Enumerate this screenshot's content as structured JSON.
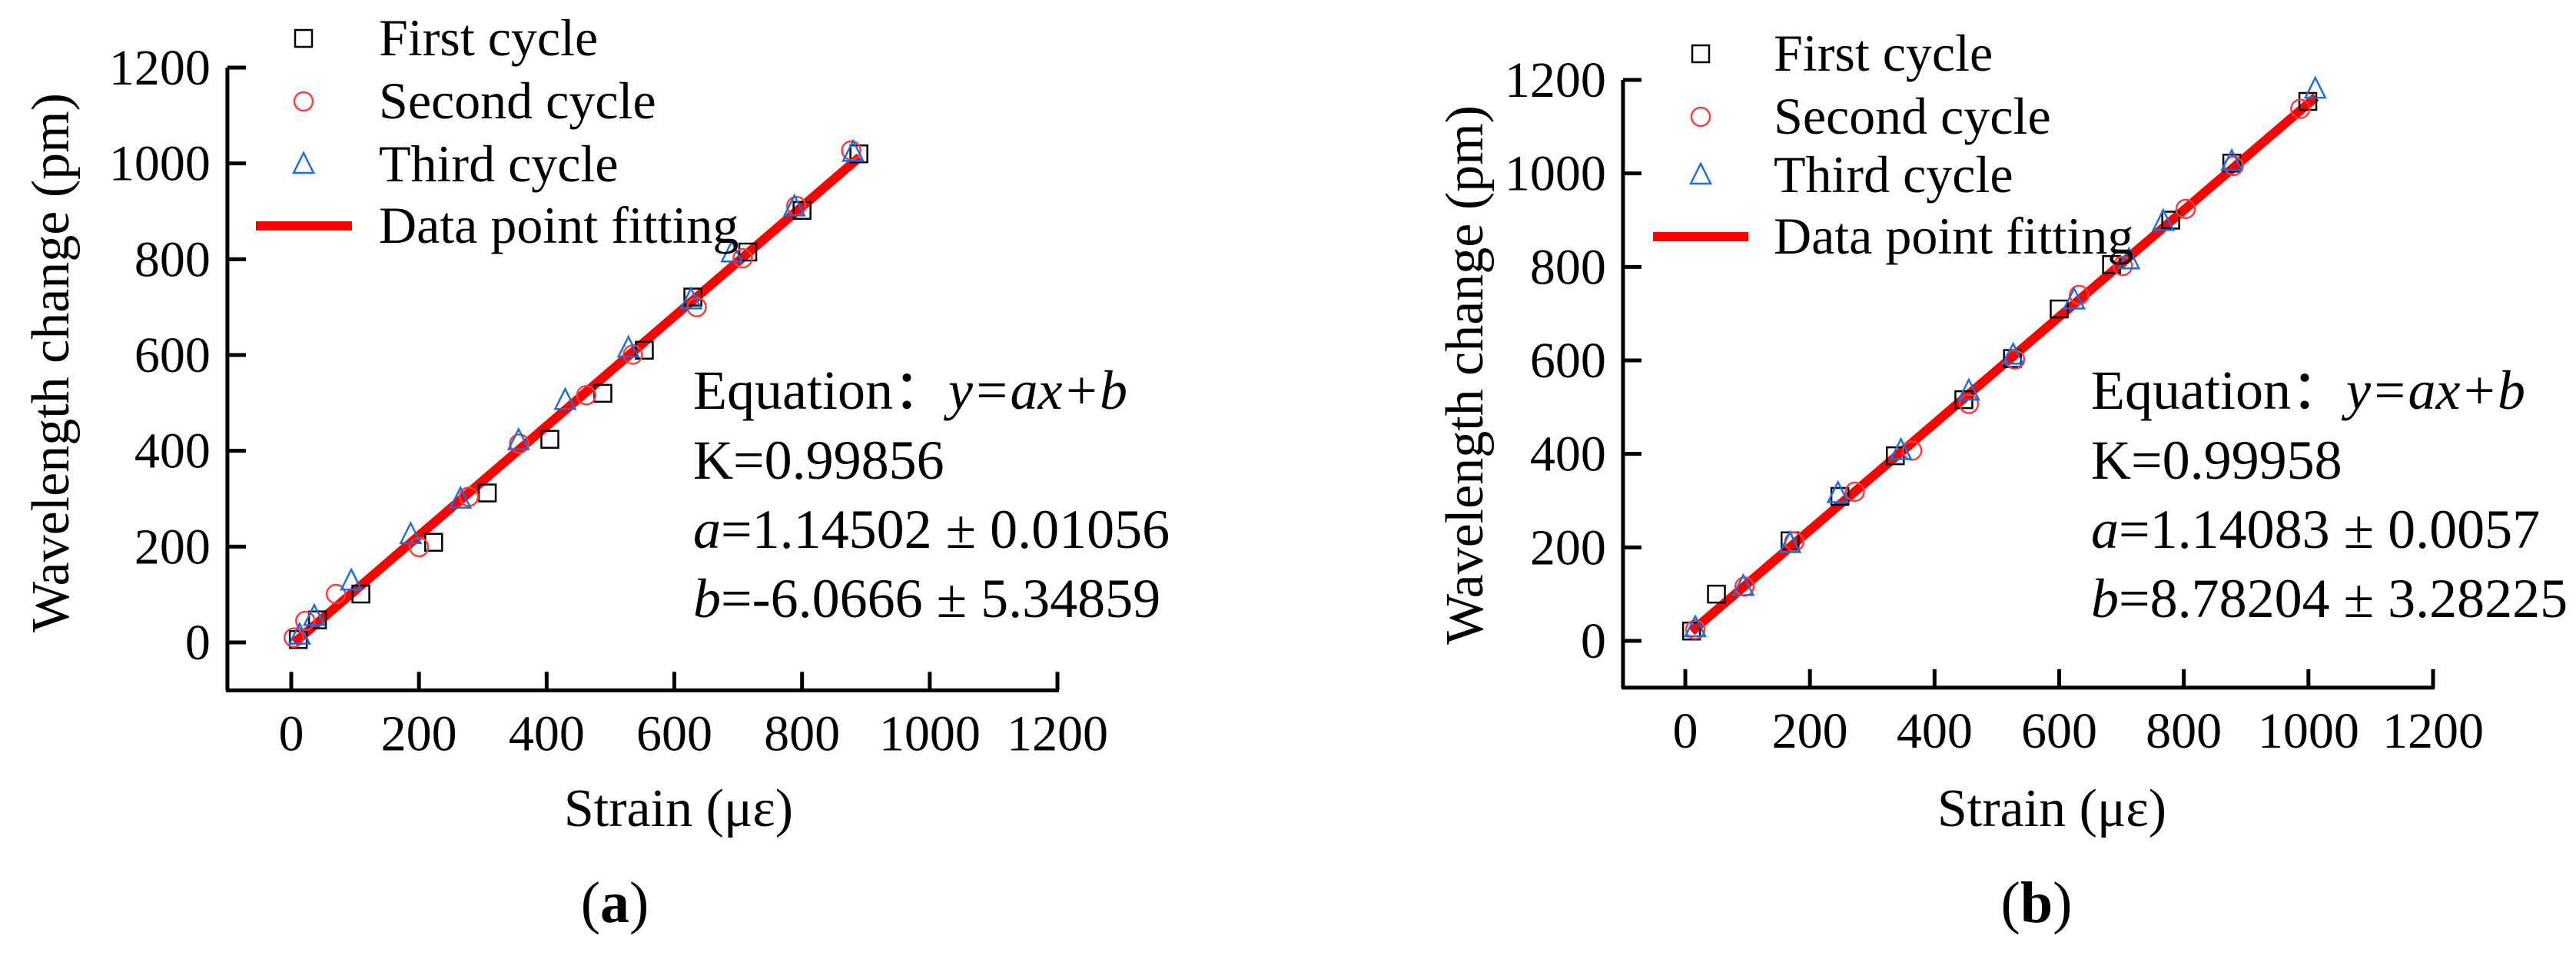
{
  "colors": {
    "first": "#000000",
    "second": "#ff3b3b",
    "third": "#1a6fe0",
    "fit": "#ff0000"
  },
  "chart_data": [
    {
      "type": "scatter",
      "caption": "a",
      "xlabel": "Strain (με)",
      "ylabel": "Wavelength change (pm)",
      "xlim": [
        -100,
        1200
      ],
      "ylim": [
        -100,
        1200
      ],
      "xticks": [
        0,
        200,
        400,
        600,
        800,
        1000,
        1200
      ],
      "yticks": [
        0,
        200,
        400,
        600,
        800,
        1000,
        1200
      ],
      "legend_position": "top-left",
      "series": [
        {
          "name": "First cycle",
          "marker": "square",
          "x": [
            11,
            41,
            109,
            223,
            307,
            405,
            488,
            553,
            629,
            715,
            800,
            889
          ],
          "y": [
            6,
            47,
            101,
            209,
            312,
            424,
            520,
            610,
            721,
            815,
            902,
            1020
          ]
        },
        {
          "name": "Second cycle",
          "marker": "circle",
          "x": [
            4,
            22,
            70,
            200,
            278,
            357,
            462,
            535,
            635,
            707,
            791,
            877
          ],
          "y": [
            10,
            45,
            101,
            199,
            304,
            415,
            516,
            601,
            700,
            802,
            911,
            1027
          ]
        },
        {
          "name": "Third cycle",
          "marker": "triangle",
          "x": [
            13,
            36,
            94,
            187,
            265,
            356,
            429,
            528,
            626,
            690,
            788,
            880
          ],
          "y": [
            15,
            54,
            128,
            225,
            299,
            421,
            505,
            614,
            715,
            813,
            909,
            1023
          ]
        }
      ],
      "fit": {
        "name": "Data point fitting",
        "slope": 1.14502,
        "intercept": -6.0666,
        "x_range": [
          5,
          890
        ]
      },
      "annotation": {
        "equation_label": "Equation：",
        "equation_formula": "y=ax+b",
        "k_line": "K=0.99856",
        "a_symbol": "a",
        "a_value": "=1.14502 ± 0.01056",
        "b_symbol": "b",
        "b_value": "=-6.0666 ± 5.34859"
      }
    },
    {
      "type": "scatter",
      "caption": "b",
      "xlabel": "Strain (με)",
      "ylabel": "Wavelength change (pm)",
      "xlim": [
        -100,
        1200
      ],
      "ylim": [
        -100,
        1200
      ],
      "xticks": [
        0,
        200,
        400,
        600,
        800,
        1000,
        1200
      ],
      "yticks": [
        0,
        200,
        400,
        600,
        800,
        1000,
        1200
      ],
      "legend_position": "top-left",
      "series": [
        {
          "name": "First cycle",
          "marker": "square",
          "x": [
            10,
            50,
            168,
            248,
            337,
            447,
            525,
            600,
            684,
            779,
            877,
            999
          ],
          "y": [
            21,
            100,
            214,
            309,
            396,
            516,
            604,
            710,
            805,
            900,
            1022,
            1154
          ]
        },
        {
          "name": "Second cycle",
          "marker": "circle",
          "x": [
            16,
            95,
            175,
            272,
            364,
            455,
            529,
            632,
            702,
            803,
            880,
            987
          ],
          "y": [
            24,
            116,
            212,
            319,
            407,
            507,
            602,
            740,
            802,
            924,
            1016,
            1138
          ]
        },
        {
          "name": "Third cycle",
          "marker": "triangle",
          "x": [
            16,
            93,
            168,
            245,
            346,
            455,
            526,
            624,
            712,
            767,
            877,
            1011
          ],
          "y": [
            28,
            116,
            208,
            315,
            407,
            534,
            611,
            729,
            815,
            897,
            1025,
            1180
          ]
        }
      ],
      "fit": {
        "name": "Data point fitting",
        "slope": 1.14083,
        "intercept": 8.78204,
        "x_range": [
          10,
          1012
        ]
      },
      "annotation": {
        "equation_label": "Equation：",
        "equation_formula": "y=ax+b",
        "k_line": "K=0.99958",
        "a_symbol": "a",
        "a_value": "=1.14083 ± 0.0057",
        "b_symbol": "b",
        "b_value": "=8.78204 ± 3.28225"
      }
    }
  ]
}
